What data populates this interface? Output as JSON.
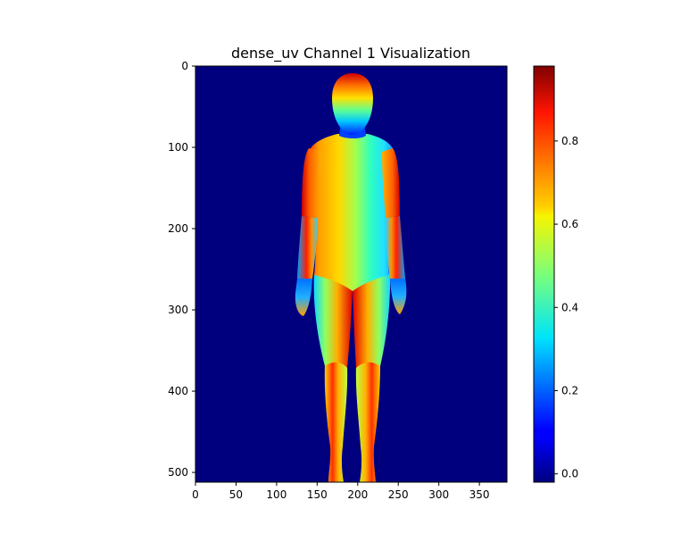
{
  "chart_data": {
    "type": "heatmap",
    "title": "dense_uv Channel 1 Visualization",
    "colormap": "jet",
    "background_value": 0.0,
    "x_ticks": [
      "0",
      "50",
      "100",
      "150",
      "200",
      "250",
      "300",
      "350"
    ],
    "y_ticks": [
      "0",
      "100",
      "200",
      "300",
      "400",
      "500"
    ],
    "xlim": [
      0,
      384
    ],
    "ylim": [
      512,
      0
    ],
    "colorbar": {
      "ticks": [
        "0.0",
        "0.2",
        "0.4",
        "0.6",
        "0.8"
      ],
      "range": [
        -0.02,
        0.98
      ]
    }
  }
}
